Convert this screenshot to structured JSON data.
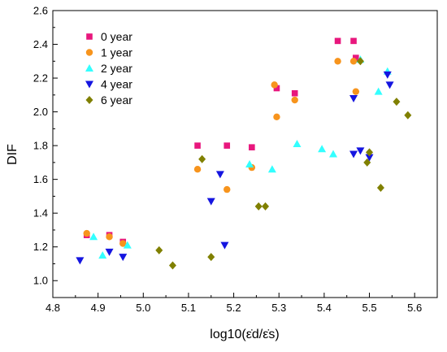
{
  "chart_data": {
    "type": "scatter",
    "title": "",
    "xlabel": "log10(ε̇d/ε̇s)",
    "ylabel": "DIF",
    "xlim": [
      4.8,
      5.65
    ],
    "ylim": [
      0.9,
      2.6
    ],
    "x_ticks": [
      "4.8",
      "4.9",
      "5.0",
      "5.1",
      "5.2",
      "5.3",
      "5.4",
      "5.5",
      "5.6"
    ],
    "y_ticks": [
      "1.0",
      "1.2",
      "1.4",
      "1.6",
      "1.8",
      "2.0",
      "2.2",
      "2.4",
      "2.6"
    ],
    "grid": false,
    "legend_position": "top-left",
    "series": [
      {
        "name": "0 year",
        "marker": "square",
        "color": "#E8177D",
        "points": [
          [
            4.875,
            1.27
          ],
          [
            4.925,
            1.27
          ],
          [
            4.955,
            1.23
          ],
          [
            5.12,
            1.8
          ],
          [
            5.185,
            1.8
          ],
          [
            5.24,
            1.79
          ],
          [
            5.295,
            2.14
          ],
          [
            5.335,
            2.11
          ],
          [
            5.43,
            2.42
          ],
          [
            5.465,
            2.42
          ],
          [
            5.47,
            2.32
          ]
        ]
      },
      {
        "name": "1 year",
        "marker": "circle",
        "color": "#F7941D",
        "points": [
          [
            4.875,
            1.28
          ],
          [
            4.925,
            1.26
          ],
          [
            4.955,
            1.22
          ],
          [
            5.12,
            1.66
          ],
          [
            5.185,
            1.54
          ],
          [
            5.24,
            1.67
          ],
          [
            5.29,
            2.16
          ],
          [
            5.295,
            1.97
          ],
          [
            5.335,
            2.07
          ],
          [
            5.43,
            2.3
          ],
          [
            5.465,
            2.3
          ],
          [
            5.47,
            2.12
          ]
        ]
      },
      {
        "name": "2 year",
        "marker": "triangle-up",
        "color": "#33FFFF",
        "points": [
          [
            4.89,
            1.26
          ],
          [
            4.91,
            1.15
          ],
          [
            4.965,
            1.21
          ],
          [
            5.235,
            1.69
          ],
          [
            5.285,
            1.66
          ],
          [
            5.34,
            1.81
          ],
          [
            5.395,
            1.78
          ],
          [
            5.42,
            1.75
          ],
          [
            5.48,
            2.31
          ],
          [
            5.52,
            2.12
          ],
          [
            5.54,
            2.24
          ]
        ]
      },
      {
        "name": "4 year",
        "marker": "triangle-down",
        "color": "#1515E0",
        "points": [
          [
            4.86,
            1.12
          ],
          [
            4.925,
            1.17
          ],
          [
            4.955,
            1.14
          ],
          [
            5.15,
            1.47
          ],
          [
            5.17,
            1.63
          ],
          [
            5.18,
            1.21
          ],
          [
            5.465,
            2.08
          ],
          [
            5.465,
            1.75
          ],
          [
            5.48,
            1.77
          ],
          [
            5.5,
            1.73
          ],
          [
            5.54,
            2.22
          ],
          [
            5.545,
            2.16
          ]
        ]
      },
      {
        "name": "6 year",
        "marker": "diamond",
        "color": "#808000",
        "points": [
          [
            5.035,
            1.18
          ],
          [
            5.065,
            1.09
          ],
          [
            5.13,
            1.72
          ],
          [
            5.15,
            1.14
          ],
          [
            5.255,
            1.44
          ],
          [
            5.27,
            1.44
          ],
          [
            5.48,
            2.3
          ],
          [
            5.495,
            1.7
          ],
          [
            5.5,
            1.76
          ],
          [
            5.525,
            1.55
          ],
          [
            5.56,
            2.06
          ],
          [
            5.585,
            1.98
          ]
        ]
      }
    ]
  }
}
